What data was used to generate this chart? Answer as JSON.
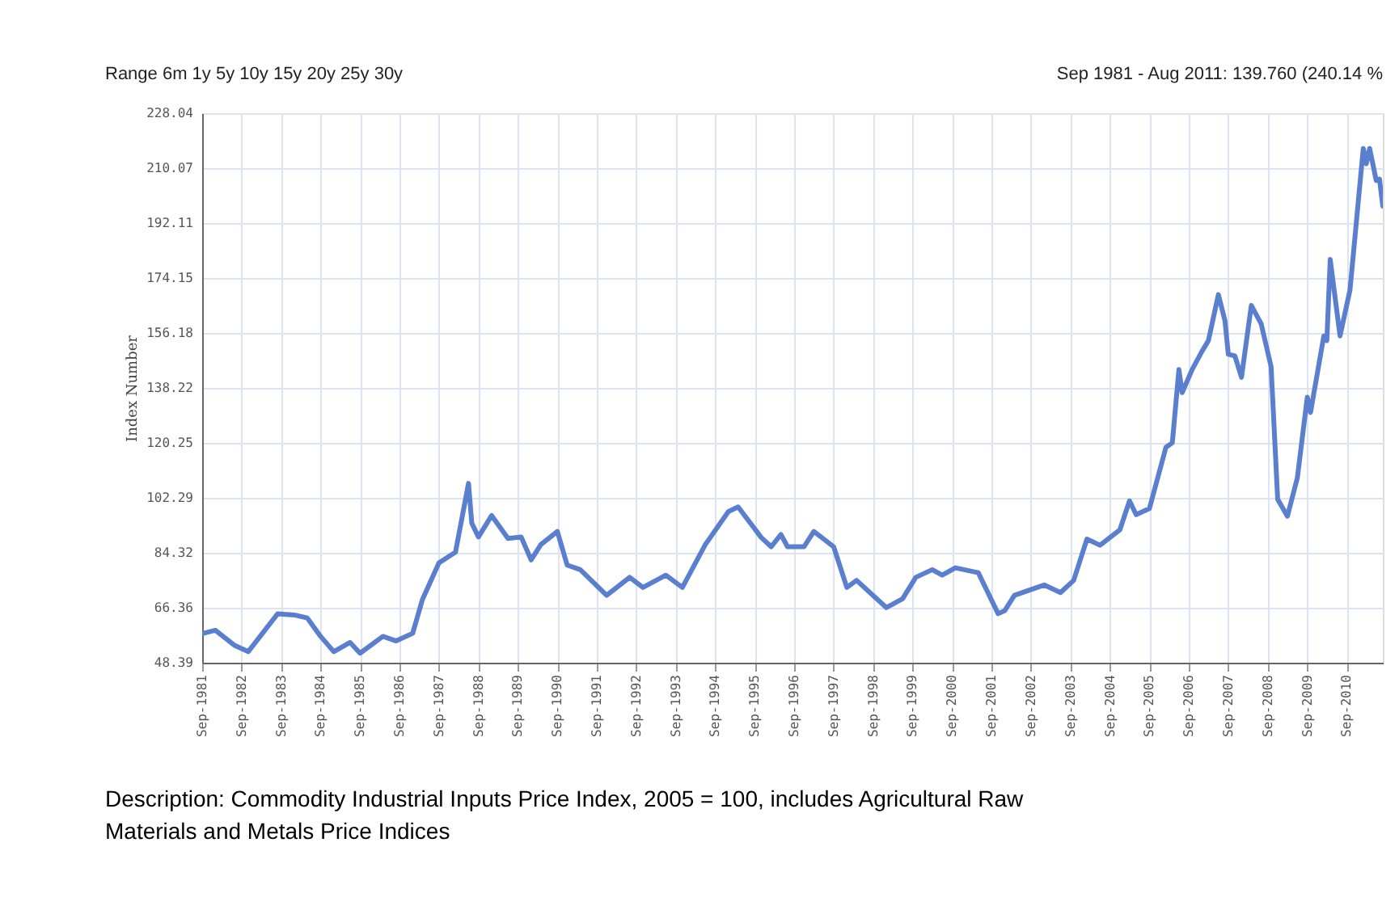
{
  "chart_data": {
    "type": "line",
    "ylabel": "Index Number",
    "annotations": [
      "Range 6m 1y 5y 10y 15y 20y 25y 30y",
      "Sep 1981 - Aug 2011: 139.760 (240.14 %",
      "Description: Commodity Industrial Inputs Price Index, 2005 = 100, includes Agricultural Raw Materials and Metals Price Indices"
    ],
    "x": [
      "1981-09",
      "1982-01",
      "1982-07",
      "1982-11",
      "1983-08",
      "1984-01",
      "1984-05",
      "1984-09",
      "1985-01",
      "1985-06",
      "1985-09",
      "1986-04",
      "1986-08",
      "1987-01",
      "1987-04",
      "1987-09",
      "1988-02",
      "1988-06",
      "1988-07",
      "1988-09",
      "1989-01",
      "1989-06",
      "1989-10",
      "1990-01",
      "1990-04",
      "1990-09",
      "1990-12",
      "1991-04",
      "1991-12",
      "1992-07",
      "1992-11",
      "1993-06",
      "1993-11",
      "1994-06",
      "1995-01",
      "1995-04",
      "1995-11",
      "1996-02",
      "1996-05",
      "1996-07",
      "1996-12",
      "1997-03",
      "1997-09",
      "1998-01",
      "1998-04",
      "1999-01",
      "1999-06",
      "1999-10",
      "2000-03",
      "2000-06",
      "2000-10",
      "2001-05",
      "2001-11",
      "2002-01",
      "2002-04",
      "2003-01",
      "2003-06",
      "2003-10",
      "2004-02",
      "2004-06",
      "2004-12",
      "2005-03",
      "2005-05",
      "2005-09",
      "2006-02",
      "2006-04",
      "2006-06",
      "2006-07",
      "2006-10",
      "2007-01",
      "2007-03",
      "2007-06",
      "2007-08",
      "2007-09",
      "2007-11",
      "2008-01",
      "2008-04",
      "2008-07",
      "2008-10",
      "2008-12",
      "2009-03",
      "2009-06",
      "2009-09",
      "2009-10",
      "2010-02",
      "2010-03",
      "2010-04",
      "2010-07",
      "2010-10",
      "2011-02",
      "2011-03",
      "2011-04",
      "2011-06",
      "2011-07",
      "2011-08"
    ],
    "series": [
      {
        "color": "#5b7fcf",
        "values": [
          57.9,
          59,
          54,
          52,
          64.4,
          64,
          63,
          57,
          52,
          55,
          51.5,
          57,
          55.5,
          58,
          69,
          81,
          84.5,
          107,
          94,
          89.5,
          96.5,
          89,
          89.5,
          82,
          87,
          91.3,
          80.3,
          78.8,
          70.4,
          76.3,
          73,
          77,
          73,
          87,
          97.8,
          99.3,
          89.3,
          86.3,
          90.3,
          86.3,
          86.3,
          91.3,
          86.3,
          73,
          75.3,
          66.4,
          69.3,
          76.3,
          78.8,
          77,
          79.4,
          77.8,
          64.4,
          65.4,
          70.4,
          73.8,
          71.3,
          75.3,
          88.8,
          86.8,
          91.8,
          101.3,
          96.8,
          98.8,
          118.8,
          120.3,
          144.2,
          136.7,
          144.2,
          150.2,
          153.7,
          168.7,
          160.2,
          149.2,
          148.7,
          141.7,
          165.2,
          159.2,
          145.2,
          101.8,
          96.3,
          108.8,
          135.2,
          130.2,
          155.2,
          153.7,
          180.2,
          155.2,
          170.2,
          216.5,
          211.5,
          216.5,
          206.0,
          206.5,
          197.6
        ]
      }
    ],
    "xlim": [
      "1981-09",
      "2011-08"
    ],
    "xticks": [
      {
        "value": "1981-09",
        "label": "Sep-1981"
      },
      {
        "value": "1982-09",
        "label": "Sep-1982"
      },
      {
        "value": "1983-09",
        "label": "Sep-1983"
      },
      {
        "value": "1984-09",
        "label": "Sep-1984"
      },
      {
        "value": "1985-09",
        "label": "Sep-1985"
      },
      {
        "value": "1986-09",
        "label": "Sep-1986"
      },
      {
        "value": "1987-09",
        "label": "Sep-1987"
      },
      {
        "value": "1988-09",
        "label": "Sep-1988"
      },
      {
        "value": "1989-09",
        "label": "Sep-1989"
      },
      {
        "value": "1990-09",
        "label": "Sep-1990"
      },
      {
        "value": "1991-09",
        "label": "Sep-1991"
      },
      {
        "value": "1992-09",
        "label": "Sep-1992"
      },
      {
        "value": "1993-09",
        "label": "Sep-1993"
      },
      {
        "value": "1994-09",
        "label": "Sep-1994"
      },
      {
        "value": "1995-09",
        "label": "Sep-1995"
      },
      {
        "value": "1996-09",
        "label": "Sep-1996"
      },
      {
        "value": "1997-09",
        "label": "Sep-1997"
      },
      {
        "value": "1998-09",
        "label": "Sep-1998"
      },
      {
        "value": "1999-09",
        "label": "Sep-1999"
      },
      {
        "value": "2000-09",
        "label": "Sep-2000"
      },
      {
        "value": "2001-09",
        "label": "Sep-2001"
      },
      {
        "value": "2002-09",
        "label": "Sep-2002"
      },
      {
        "value": "2003-09",
        "label": "Sep-2003"
      },
      {
        "value": "2004-09",
        "label": "Sep-2004"
      },
      {
        "value": "2005-09",
        "label": "Sep-2005"
      },
      {
        "value": "2006-09",
        "label": "Sep-2006"
      },
      {
        "value": "2007-09",
        "label": "Sep-2007"
      },
      {
        "value": "2008-09",
        "label": "Sep-2008"
      },
      {
        "value": "2009-09",
        "label": "Sep-2009"
      },
      {
        "value": "2010-09",
        "label": "Sep-2010"
      }
    ],
    "ylim": [
      48.39,
      228.04
    ],
    "yticks": [
      48.39,
      66.36,
      84.32,
      102.29,
      120.25,
      138.22,
      156.18,
      174.15,
      192.11,
      210.07,
      228.04
    ],
    "grid": true,
    "marker": "none",
    "line_style": "solid"
  }
}
